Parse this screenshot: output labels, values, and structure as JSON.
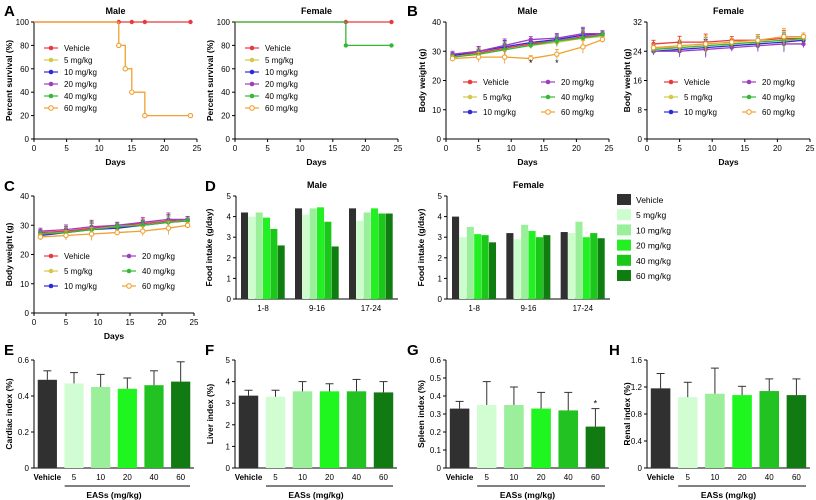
{
  "panel_letters": [
    "A",
    "B",
    "C",
    "D",
    "E",
    "F",
    "G",
    "H"
  ],
  "chart_data": [
    {
      "id": "A-male",
      "panel": "A",
      "type": "line",
      "title": "Male",
      "xlabel": "Days",
      "ylabel": "Percent survival (%)",
      "xlim": [
        0,
        25
      ],
      "ylim": [
        0,
        100
      ],
      "xticks": [
        0,
        5,
        10,
        15,
        20,
        25
      ],
      "yticks": [
        0,
        20,
        40,
        60,
        80,
        100
      ],
      "legend": [
        "Vehicle",
        "5 mg/kg",
        "10 mg/kg",
        "20 mg/kg",
        "40 mg/kg",
        "60 mg/kg"
      ],
      "series": [
        {
          "name": "Vehicle",
          "color": "#e8393e",
          "marker": "dot",
          "step": true,
          "x": [
            0,
            13,
            15,
            17,
            24
          ],
          "y": [
            100,
            100,
            100,
            100,
            100
          ]
        },
        {
          "name": "60 mg/kg",
          "color": "#f0a030",
          "marker": "ring",
          "step": true,
          "x": [
            0,
            13,
            14,
            15,
            17,
            24
          ],
          "y": [
            100,
            80,
            60,
            40,
            20,
            20
          ]
        }
      ]
    },
    {
      "id": "A-female",
      "panel": "A",
      "type": "line",
      "title": "Female",
      "xlabel": "Days",
      "ylabel": "Percent survival (%)",
      "xlim": [
        0,
        25
      ],
      "ylim": [
        0,
        100
      ],
      "xticks": [
        0,
        5,
        10,
        15,
        20,
        25
      ],
      "yticks": [
        0,
        20,
        40,
        60,
        80,
        100
      ],
      "legend": [
        "Vehicle",
        "5 mg/kg",
        "10 mg/kg",
        "20 mg/kg",
        "40 mg/kg",
        "60 mg/kg"
      ],
      "series": [
        {
          "name": "Vehicle",
          "color": "#e8393e",
          "marker": "dot",
          "step": true,
          "x": [
            0,
            17,
            24
          ],
          "y": [
            100,
            100,
            100
          ]
        },
        {
          "name": "40 mg/kg",
          "color": "#35b835",
          "marker": "dot",
          "step": true,
          "x": [
            0,
            17,
            24
          ],
          "y": [
            100,
            80,
            80
          ]
        }
      ]
    },
    {
      "id": "B-male",
      "panel": "B",
      "type": "line",
      "title": "Male",
      "xlabel": "Days",
      "ylabel": "Body weight (g)",
      "xlim": [
        0,
        25
      ],
      "ylim": [
        0,
        40
      ],
      "xticks": [
        0,
        5,
        10,
        15,
        20,
        25
      ],
      "yticks": [
        0,
        10,
        20,
        30,
        40
      ],
      "x": [
        1,
        5,
        9,
        13,
        17,
        21,
        24
      ],
      "legend": [
        "Vehicle",
        "20 mg/kg",
        "5 mg/kg",
        "40 mg/kg",
        "10 mg/kg",
        "60 mg/kg"
      ],
      "annotations": [
        {
          "text": "*",
          "x": 13,
          "y": 25
        },
        {
          "text": "*",
          "x": 17,
          "y": 25
        }
      ],
      "series": [
        {
          "name": "Vehicle",
          "color": "#e8393e",
          "marker": "dot",
          "y": [
            28.5,
            29.5,
            31,
            32.5,
            33.5,
            35,
            35.5
          ]
        },
        {
          "name": "5 mg/kg",
          "color": "#d4c84a",
          "marker": "dot",
          "y": [
            28,
            29,
            30.5,
            32,
            33,
            34.5,
            35
          ]
        },
        {
          "name": "10 mg/kg",
          "color": "#2b2bd6",
          "marker": "dot",
          "y": [
            28.5,
            30,
            31.5,
            33,
            34,
            35.5,
            36
          ]
        },
        {
          "name": "20 mg/kg",
          "color": "#9b3fbf",
          "marker": "dot",
          "y": [
            29,
            30,
            32,
            34,
            34.5,
            36,
            36
          ]
        },
        {
          "name": "40 mg/kg",
          "color": "#35b835",
          "marker": "dot",
          "y": [
            28,
            29,
            30.5,
            32,
            33.5,
            34.5,
            35.5
          ]
        },
        {
          "name": "60 mg/kg",
          "color": "#f0a030",
          "marker": "ring",
          "y": [
            27.5,
            28,
            28,
            27.5,
            29,
            31.5,
            34
          ]
        }
      ]
    },
    {
      "id": "B-female",
      "panel": "B",
      "type": "line",
      "title": "Female",
      "xlabel": "Days",
      "ylabel": "Body weight (g)",
      "xlim": [
        0,
        25
      ],
      "ylim": [
        0,
        32
      ],
      "xticks": [
        0,
        5,
        10,
        15,
        20,
        25
      ],
      "yticks": [
        0,
        8,
        16,
        24,
        32
      ],
      "x": [
        1,
        5,
        9,
        13,
        17,
        21,
        24
      ],
      "legend": [
        "Vehicle",
        "20 mg/kg",
        "5 mg/kg",
        "40 mg/kg",
        "10 mg/kg",
        "60 mg/kg"
      ],
      "series": [
        {
          "name": "Vehicle",
          "color": "#e8393e",
          "marker": "dot",
          "y": [
            26,
            26.5,
            26.5,
            27,
            27,
            27.5,
            27.5
          ]
        },
        {
          "name": "5 mg/kg",
          "color": "#d4c84a",
          "marker": "dot",
          "y": [
            25,
            25,
            25.5,
            26,
            26.5,
            27,
            27
          ]
        },
        {
          "name": "10 mg/kg",
          "color": "#2b2bd6",
          "marker": "dot",
          "y": [
            24,
            24.5,
            25,
            25.5,
            26,
            26.5,
            27
          ]
        },
        {
          "name": "20 mg/kg",
          "color": "#9b3fbf",
          "marker": "dot",
          "y": [
            24,
            24,
            24.5,
            25,
            25.5,
            26,
            26
          ]
        },
        {
          "name": "40 mg/kg",
          "color": "#35b835",
          "marker": "dot",
          "y": [
            24.5,
            25,
            25.5,
            26,
            26.5,
            27,
            27.5
          ]
        },
        {
          "name": "60 mg/kg",
          "color": "#f0a030",
          "marker": "ring",
          "y": [
            25,
            25.5,
            26,
            26.5,
            27,
            28,
            28
          ]
        }
      ]
    },
    {
      "id": "C",
      "panel": "C",
      "type": "line",
      "xlabel": "Days",
      "ylabel": "Body weight (g)",
      "xlim": [
        0,
        25
      ],
      "ylim": [
        0,
        40
      ],
      "xticks": [
        0,
        5,
        10,
        15,
        20,
        25
      ],
      "yticks": [
        0,
        10,
        20,
        30,
        40
      ],
      "x": [
        1,
        5,
        9,
        13,
        17,
        21,
        24
      ],
      "legend": [
        "Vehicle",
        "20 mg/kg",
        "5 mg/kg",
        "40 mg/kg",
        "10 mg/kg",
        "60 mg/kg"
      ],
      "series": [
        {
          "name": "Vehicle",
          "color": "#e8393e",
          "marker": "dot",
          "y": [
            27.5,
            28,
            29,
            30,
            30.5,
            31.5,
            32
          ]
        },
        {
          "name": "5 mg/kg",
          "color": "#d4c84a",
          "marker": "dot",
          "y": [
            27,
            27.5,
            28.5,
            29.5,
            30,
            31,
            31.5
          ]
        },
        {
          "name": "10 mg/kg",
          "color": "#2b2bd6",
          "marker": "dot",
          "y": [
            26.5,
            27.5,
            28.5,
            29,
            30,
            31,
            31.5
          ]
        },
        {
          "name": "20 mg/kg",
          "color": "#9b3fbf",
          "marker": "dot",
          "y": [
            28,
            28.5,
            29.5,
            30,
            31,
            32,
            32
          ]
        },
        {
          "name": "40 mg/kg",
          "color": "#35b835",
          "marker": "dot",
          "y": [
            27,
            27.5,
            28.5,
            29.5,
            30,
            31,
            31.5
          ]
        },
        {
          "name": "60 mg/kg",
          "color": "#f0a030",
          "marker": "ring",
          "y": [
            26,
            26.5,
            27,
            27.5,
            28,
            29,
            30
          ]
        }
      ]
    },
    {
      "id": "D-male",
      "panel": "D",
      "type": "bar",
      "title": "Male",
      "xlabel": "",
      "ylabel": "Food intake (g/day)",
      "ylim": [
        0,
        5
      ],
      "yticks": [
        0,
        1,
        2,
        3,
        4,
        5
      ],
      "categories": [
        "1-8",
        "9-16",
        "17-24"
      ],
      "series": [
        {
          "name": "Vehicle",
          "values": [
            4.2,
            4.4,
            4.4
          ]
        },
        {
          "name": "5 mg/kg",
          "values": [
            4.0,
            4.1,
            3.8
          ]
        },
        {
          "name": "10 mg/kg",
          "values": [
            4.2,
            4.4,
            4.2
          ]
        },
        {
          "name": "20 mg/kg",
          "values": [
            3.95,
            4.45,
            4.4
          ]
        },
        {
          "name": "40 mg/kg",
          "values": [
            3.4,
            3.75,
            4.15
          ]
        },
        {
          "name": "60 mg/kg",
          "values": [
            2.6,
            2.55,
            4.15
          ]
        }
      ]
    },
    {
      "id": "D-female",
      "panel": "D",
      "type": "bar",
      "title": "Female",
      "xlabel": "",
      "ylabel": "Food intake (g/day)",
      "ylim": [
        0,
        5
      ],
      "yticks": [
        0,
        1,
        2,
        3,
        4,
        5
      ],
      "categories": [
        "1-8",
        "9-16",
        "17-24"
      ],
      "series": [
        {
          "name": "Vehicle",
          "values": [
            4.0,
            3.2,
            3.25
          ]
        },
        {
          "name": "5 mg/kg",
          "values": [
            3.0,
            2.9,
            3.2
          ]
        },
        {
          "name": "10 mg/kg",
          "values": [
            3.5,
            3.6,
            3.75
          ]
        },
        {
          "name": "20 mg/kg",
          "values": [
            3.15,
            3.3,
            3.0
          ]
        },
        {
          "name": "40 mg/kg",
          "values": [
            3.1,
            3.0,
            3.2
          ]
        },
        {
          "name": "60 mg/kg",
          "values": [
            2.75,
            3.1,
            2.95
          ]
        }
      ],
      "legend": [
        "Vehicle",
        "5 mg/kg",
        "10 mg/kg",
        "20 mg/kg",
        "40 mg/kg",
        "60 mg/kg"
      ]
    },
    {
      "id": "E",
      "panel": "E",
      "type": "bar",
      "xlabel": "EASs (mg/kg)",
      "ylabel": "Cardiac index (%)",
      "ylim": [
        0,
        0.6
      ],
      "yticks": [
        0.0,
        0.2,
        0.4,
        0.6
      ],
      "categories": [
        "Vehicle",
        "5",
        "10",
        "20",
        "40",
        "60"
      ],
      "values": [
        0.49,
        0.47,
        0.45,
        0.44,
        0.46,
        0.48
      ],
      "errors": [
        0.05,
        0.06,
        0.07,
        0.06,
        0.08,
        0.11
      ]
    },
    {
      "id": "F",
      "panel": "F",
      "type": "bar",
      "xlabel": "EASs (mg/kg)",
      "ylabel": "Liver index (%)",
      "ylim": [
        0,
        5
      ],
      "yticks": [
        0,
        1,
        2,
        3,
        4,
        5
      ],
      "categories": [
        "Vehicle",
        "5",
        "10",
        "20",
        "40",
        "60"
      ],
      "values": [
        3.35,
        3.3,
        3.55,
        3.55,
        3.55,
        3.5
      ],
      "errors": [
        0.25,
        0.3,
        0.45,
        0.35,
        0.55,
        0.5
      ]
    },
    {
      "id": "G",
      "panel": "G",
      "type": "bar",
      "xlabel": "EASs (mg/kg)",
      "ylabel": "Spleen index (%)",
      "ylim": [
        0,
        0.6
      ],
      "yticks": [
        0.0,
        0.1,
        0.2,
        0.3,
        0.4,
        0.5,
        0.6
      ],
      "categories": [
        "Vehicle",
        "5",
        "10",
        "20",
        "40",
        "60"
      ],
      "values": [
        0.33,
        0.35,
        0.35,
        0.33,
        0.32,
        0.23
      ],
      "errors": [
        0.04,
        0.13,
        0.1,
        0.09,
        0.1,
        0.1
      ],
      "annotations": [
        {
          "text": "*",
          "category": "60"
        }
      ]
    },
    {
      "id": "H",
      "panel": "H",
      "type": "bar",
      "xlabel": "EASs (mg/kg)",
      "ylabel": "Renal index (%)",
      "ylim": [
        0,
        1.6
      ],
      "yticks": [
        0.0,
        0.4,
        0.8,
        1.2,
        1.6
      ],
      "categories": [
        "Vehicle",
        "5",
        "10",
        "20",
        "40",
        "60"
      ],
      "values": [
        1.18,
        1.05,
        1.1,
        1.08,
        1.14,
        1.08
      ],
      "errors": [
        0.22,
        0.22,
        0.38,
        0.13,
        0.18,
        0.24
      ]
    }
  ],
  "bar_colors": [
    "#303030",
    "#d2fcd2",
    "#9bef9b",
    "#1ff51f",
    "#22c222",
    "#127a12"
  ],
  "bar_colors_D": [
    "#303030",
    "#cdfccd",
    "#9af09a",
    "#22f022",
    "#19c819",
    "#0f7d0f"
  ]
}
